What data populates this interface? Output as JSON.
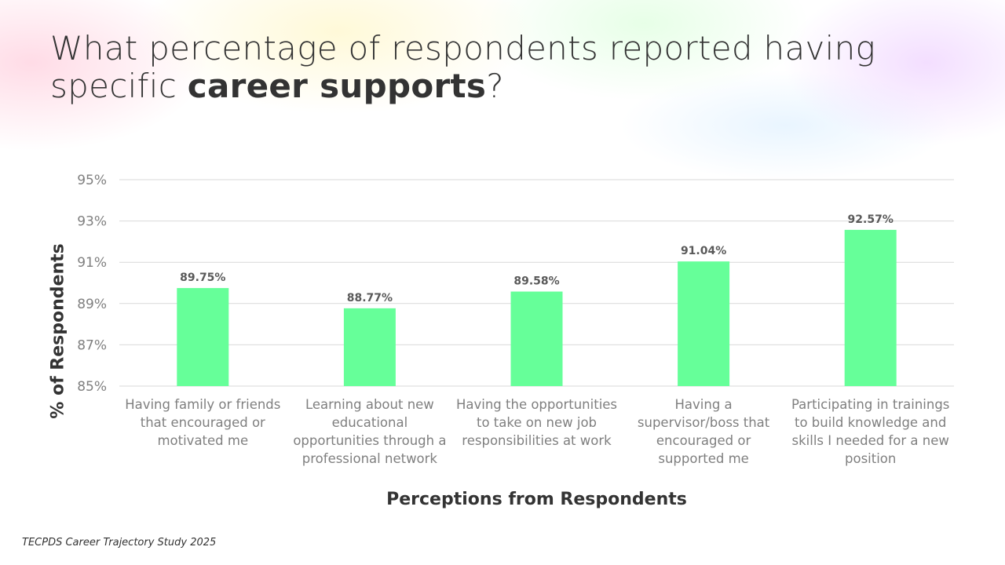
{
  "title": {
    "prefix": "What percentage of respondents reported having specific ",
    "bold": "career supports",
    "suffix": "?"
  },
  "source": "TECPDS Career Trajectory Study 2025",
  "colors": {
    "bar": "#66FF99",
    "grid": "#D9D9D9"
  },
  "chart_data": {
    "type": "bar",
    "xlabel": "Perceptions from Respondents",
    "ylabel": "% of Respondents",
    "ylim": [
      85,
      95
    ],
    "yticks": [
      "85%",
      "87%",
      "89%",
      "91%",
      "93%",
      "95%"
    ],
    "ytick_values": [
      85,
      87,
      89,
      91,
      93,
      95
    ],
    "grid": true,
    "categories": [
      "Having family or friends that encouraged or motivated me",
      "Learning about new educational opportunities through a professional network",
      "Having the opportunities to take on new job responsibilities at work",
      "Having a supervisor/boss that encouraged or supported me",
      "Participating in trainings to build knowledge and skills I needed for a new position"
    ],
    "values": [
      89.75,
      88.77,
      89.58,
      91.04,
      92.57
    ],
    "labels": [
      "89.75%",
      "88.77%",
      "89.58%",
      "91.04%",
      "92.57%"
    ]
  }
}
